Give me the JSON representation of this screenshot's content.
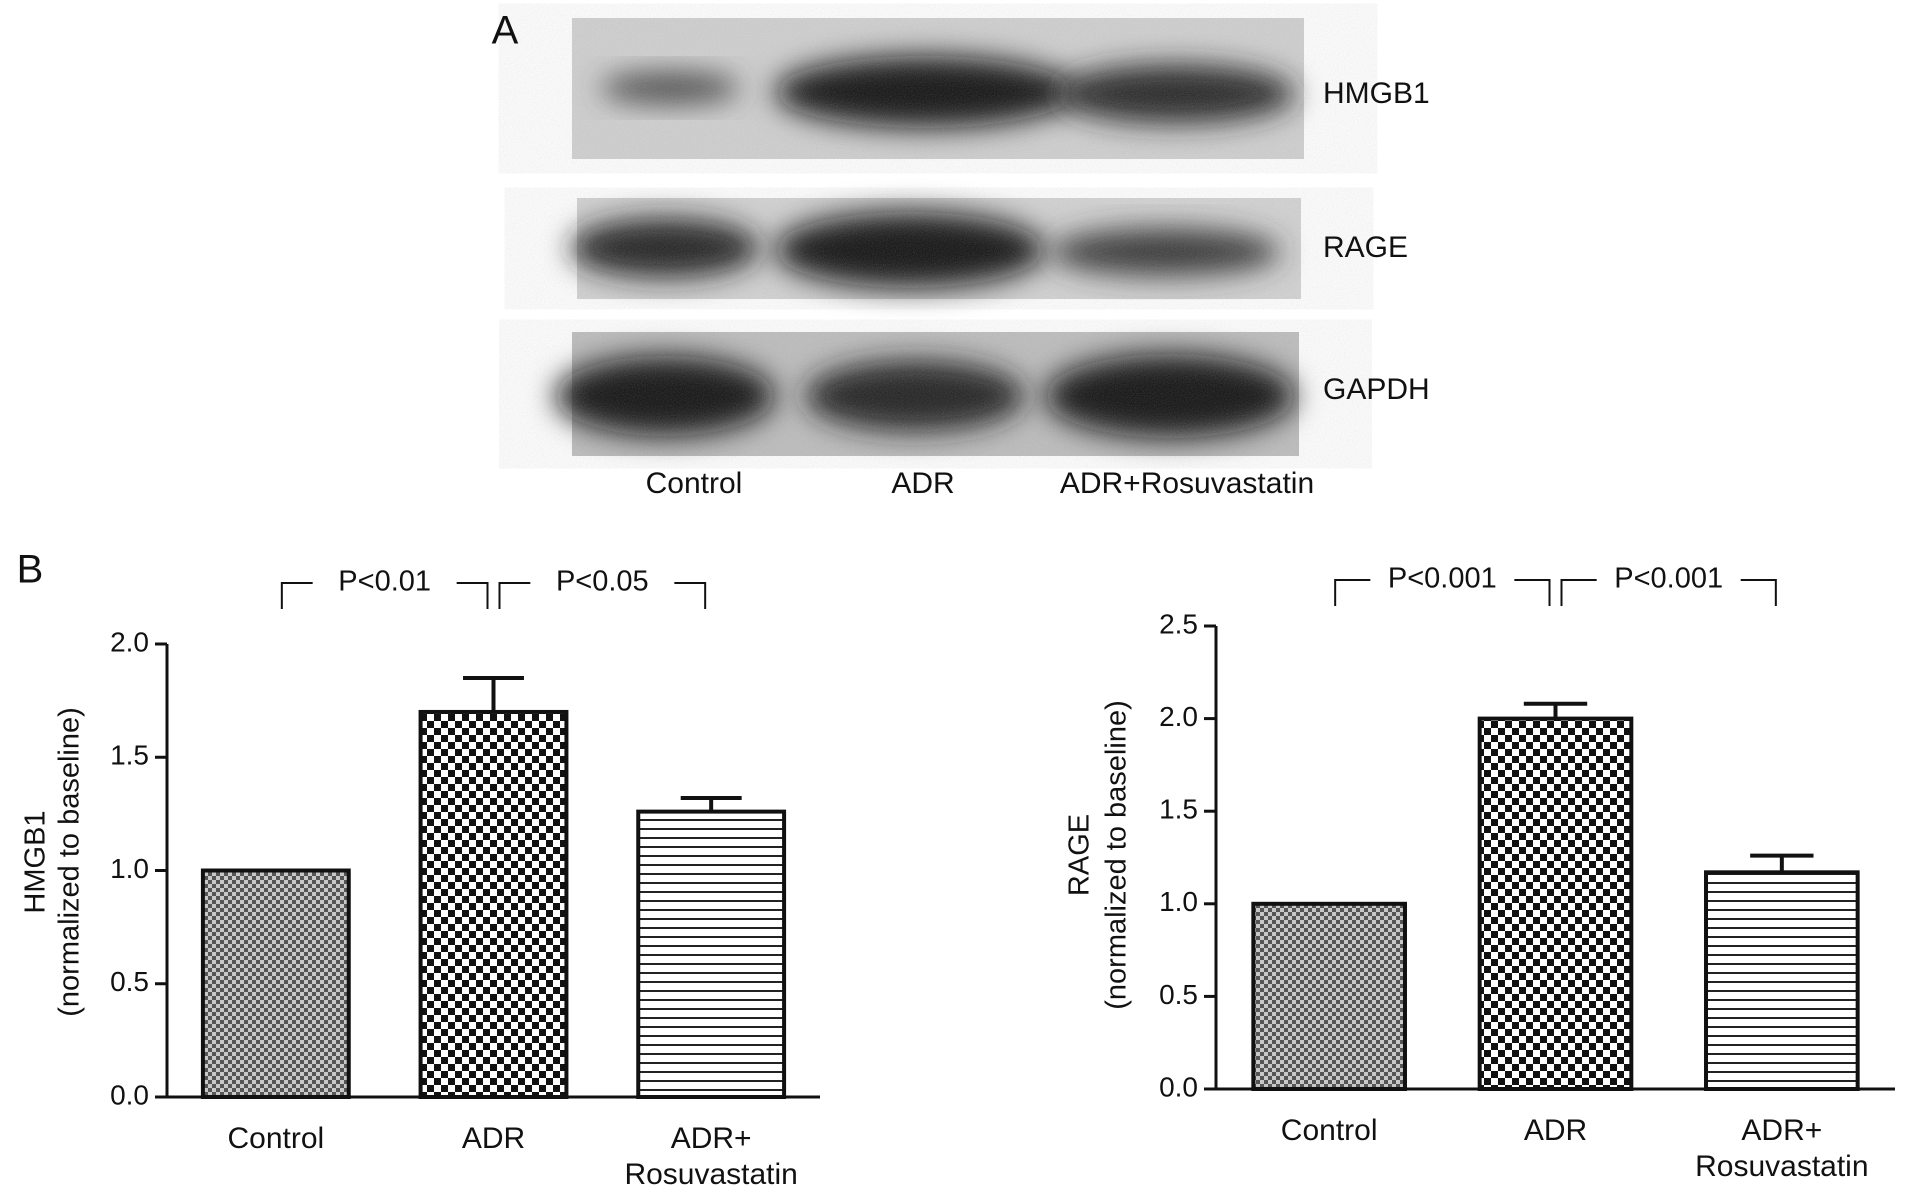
{
  "panel_a": {
    "label": "A",
    "bands": [
      "HMGB1",
      "RAGE",
      "GAPDH"
    ],
    "lanes": [
      "Control",
      "ADR",
      "ADR+Rosuvastatin"
    ]
  },
  "panel_b": {
    "label": "B"
  },
  "chart_data": [
    {
      "type": "bar",
      "ylabel": [
        "HMGB1",
        "(normalized to baseline)"
      ],
      "categories": [
        "Control",
        "ADR",
        "ADR+ Rosuvastatin"
      ],
      "values": [
        1.0,
        1.7,
        1.26
      ],
      "errors": [
        0,
        0.15,
        0.06
      ],
      "patterns": [
        "fine-checker",
        "checker",
        "stripes"
      ],
      "ylim": [
        0,
        2
      ],
      "yticks": [
        {
          "value": 0,
          "label": "0.0"
        },
        0.5,
        {
          "value": 1,
          "label": "1.0"
        },
        1.5,
        {
          "value": 2,
          "label": "2.0"
        }
      ],
      "annotations": [
        {
          "text": "P<0.01",
          "between": [
            "Control",
            "ADR"
          ]
        },
        {
          "text": "P<0.05",
          "between": [
            "ADR",
            "ADR+ Rosuvastatin"
          ]
        }
      ]
    },
    {
      "type": "bar",
      "ylabel": [
        "RAGE",
        "(normalized to baseline)"
      ],
      "categories": [
        "Control",
        "ADR",
        "ADR+ Rosuvastatin"
      ],
      "values": [
        1.0,
        2.0,
        1.17
      ],
      "errors": [
        0,
        0.08,
        0.09
      ],
      "patterns": [
        "fine-checker",
        "checker",
        "stripes"
      ],
      "ylim": [
        0,
        2.5
      ],
      "yticks": [
        {
          "value": 0,
          "label": "0.0"
        },
        0.5,
        {
          "value": 1,
          "label": "1.0"
        },
        1.5,
        {
          "value": 2,
          "label": "2.0"
        },
        2.5
      ],
      "annotations": [
        {
          "text": "P<0.001",
          "between": [
            "Control",
            "ADR"
          ]
        },
        {
          "text": "P<0.001",
          "between": [
            "ADR",
            "ADR+ Rosuvastatin"
          ]
        }
      ]
    }
  ]
}
